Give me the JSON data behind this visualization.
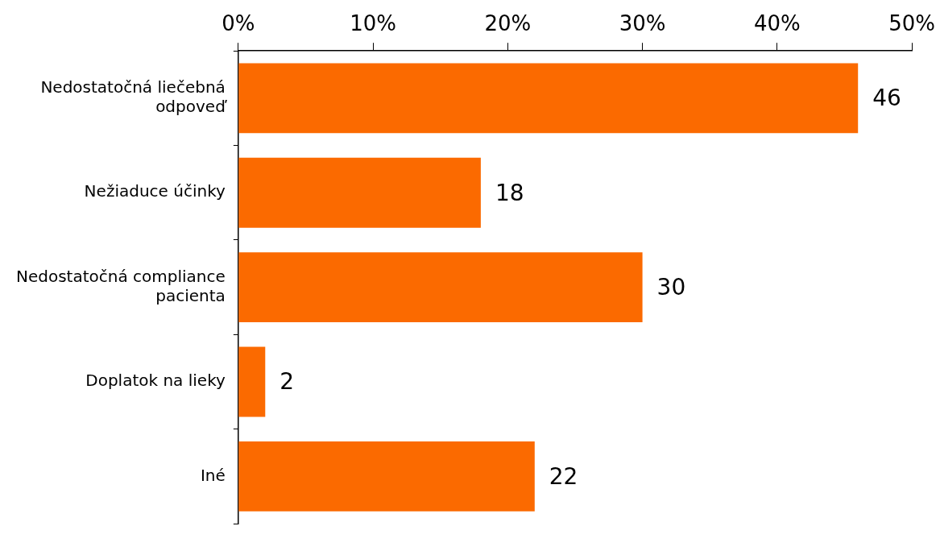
{
  "chart_data": {
    "type": "bar",
    "orientation": "horizontal",
    "categories": [
      "Nedostatočná liečebná odpoveď",
      "Nežiaduce účinky",
      "Nedostatočná compliance pacienta",
      "Doplatok na lieky",
      "Iné"
    ],
    "values": [
      46,
      18,
      30,
      2,
      22
    ],
    "color": "#fb6a00",
    "data_labels": true,
    "xlim": [
      0,
      50
    ],
    "xticks": [
      {
        "value": 0,
        "label": "0%"
      },
      {
        "value": 10,
        "label": "10%"
      },
      {
        "value": 20,
        "label": "20%"
      },
      {
        "value": 30,
        "label": "30%"
      },
      {
        "value": 40,
        "label": "40%"
      },
      {
        "value": 50,
        "label": "50%"
      }
    ]
  }
}
